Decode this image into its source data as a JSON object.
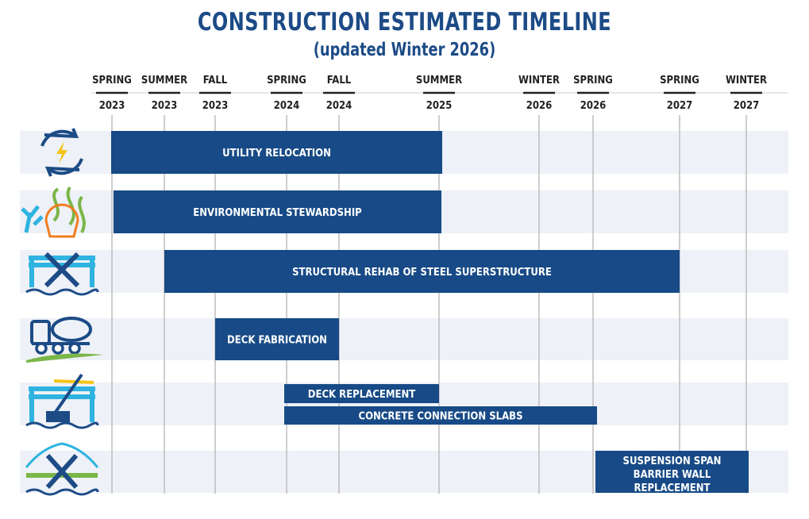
{
  "title": "CONSTRUCTION ESTIMATED TIMELINE",
  "subtitle": "(updated Winter 2026)",
  "chart_data": {
    "type": "gantt",
    "title": "CONSTRUCTION ESTIMATED TIMELINE",
    "subtitle": "(updated Winter 2026)",
    "ticks": [
      {
        "season": "SPRING",
        "year": "2023"
      },
      {
        "season": "SUMMER",
        "year": "2023"
      },
      {
        "season": "FALL",
        "year": "2023"
      },
      {
        "season": "SPRING",
        "year": "2024"
      },
      {
        "season": "FALL",
        "year": "2024"
      },
      {
        "season": "SUMMER",
        "year": "2025"
      },
      {
        "season": "WINTER",
        "year": "2026"
      },
      {
        "season": "SPRING",
        "year": "2026"
      },
      {
        "season": "SPRING",
        "year": "2027"
      },
      {
        "season": "WINTER",
        "year": "2027"
      }
    ],
    "rows": [
      {
        "icon": "utility-relocation-icon",
        "tasks": [
          {
            "label": "UTILITY RELOCATION",
            "start": "Spring 2023",
            "end": "Summer 2025"
          }
        ]
      },
      {
        "icon": "environmental-stewardship-icon",
        "tasks": [
          {
            "label": "ENVIRONMENTAL STEWARDSHIP",
            "start": "Spring 2023",
            "end": "Summer 2025"
          }
        ]
      },
      {
        "icon": "structural-rehab-icon",
        "tasks": [
          {
            "label": "STRUCTURAL REHAB OF STEEL SUPERSTRUCTURE",
            "start": "Summer 2023",
            "end": "Spring 2027"
          }
        ]
      },
      {
        "icon": "concrete-truck-icon",
        "tasks": [
          {
            "label": "DECK FABRICATION",
            "start": "Fall 2023",
            "end": "Fall 2024"
          }
        ]
      },
      {
        "icon": "crane-bridge-icon",
        "tasks": [
          {
            "label": "DECK REPLACEMENT",
            "start": "Spring 2024",
            "end": "Summer 2025"
          },
          {
            "label": "CONCRETE CONNECTION SLABS",
            "start": "Spring 2024",
            "end": "Spring 2026"
          }
        ]
      },
      {
        "icon": "suspension-bridge-tools-icon",
        "tasks": [
          {
            "label": "SUSPENSION SPAN BARRIER WALL REPLACEMENT",
            "start": "Spring 2026",
            "end": "Winter 2027"
          }
        ]
      }
    ],
    "colors": {
      "bar": "#174a86",
      "row": "#eef1f7",
      "title": "#1c4b86",
      "grid": "#bdbdbd"
    }
  }
}
